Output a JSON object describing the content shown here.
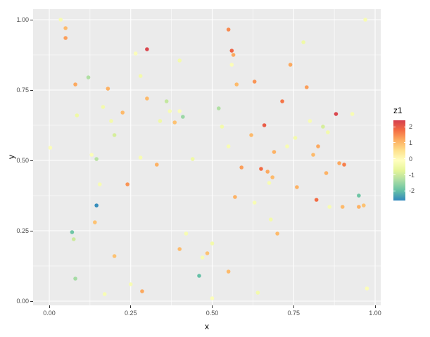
{
  "colors": {
    "panel_background": "#EBEBEB",
    "grid_major": "#FFFFFF",
    "grid_minor": "#FFFFFF",
    "axis_tick": "#333333",
    "tick_label": "#4D4D4D",
    "axis_title": "#000000"
  },
  "chart_data": {
    "type": "scatter",
    "title": "",
    "xlabel": "x",
    "ylabel": "y",
    "legend_title": "z1",
    "legend_position": "right",
    "grid": "on",
    "xlim": [
      0,
      1
    ],
    "ylim": [
      0,
      1
    ],
    "x_tick_values": [
      0,
      0.25,
      0.5,
      0.75,
      1
    ],
    "x_tick_labels": [
      "0.00",
      "0.25",
      "0.50",
      "0.75",
      "1.00"
    ],
    "y_tick_values": [
      0,
      0.25,
      0.5,
      0.75,
      1
    ],
    "y_tick_labels": [
      "0.00",
      "0.25",
      "0.50",
      "0.75",
      "1.00"
    ],
    "minor_tick_values": [
      0.125,
      0.375,
      0.625,
      0.875
    ],
    "colorbar": {
      "title": "z1",
      "domain": [
        -2.6,
        2.4
      ],
      "tick_values": [
        2,
        1,
        0,
        -1,
        -2
      ],
      "tick_labels": [
        "2",
        "1",
        "0",
        "-1",
        "-2"
      ],
      "palette_name": "Spectral",
      "palette_stops_bottom_to_top": [
        "#3288BD",
        "#66C2A5",
        "#ABDDA4",
        "#E6F598",
        "#FFFFBF",
        "#FEE08B",
        "#FDAE61",
        "#F46D43",
        "#D53E4F"
      ]
    },
    "points": [
      [
        0.003,
        0.545,
        -0.2
      ],
      [
        0.035,
        1.0,
        -0.3
      ],
      [
        0.05,
        0.97,
        1.0
      ],
      [
        0.05,
        0.935,
        1.3
      ],
      [
        0.08,
        0.77,
        1.2
      ],
      [
        0.085,
        0.66,
        -0.5
      ],
      [
        0.07,
        0.245,
        -1.9
      ],
      [
        0.075,
        0.22,
        -1.0
      ],
      [
        0.08,
        0.08,
        -1.4
      ],
      [
        0.12,
        0.795,
        -1.3
      ],
      [
        0.13,
        0.52,
        -0.2
      ],
      [
        0.145,
        0.505,
        -1.2
      ],
      [
        0.145,
        0.34,
        -2.55
      ],
      [
        0.14,
        0.28,
        0.9
      ],
      [
        0.155,
        0.415,
        -0.3
      ],
      [
        0.165,
        0.69,
        -0.4
      ],
      [
        0.17,
        0.025,
        -0.3
      ],
      [
        0.18,
        0.755,
        1.1
      ],
      [
        0.19,
        0.64,
        -0.4
      ],
      [
        0.2,
        0.59,
        -0.9
      ],
      [
        0.2,
        0.16,
        0.9
      ],
      [
        0.225,
        0.67,
        1.0
      ],
      [
        0.24,
        0.415,
        1.4
      ],
      [
        0.25,
        0.06,
        -0.3
      ],
      [
        0.265,
        0.88,
        -0.2
      ],
      [
        0.28,
        0.8,
        -0.4
      ],
      [
        0.28,
        0.51,
        -0.3
      ],
      [
        0.285,
        0.035,
        1.2
      ],
      [
        0.3,
        0.895,
        2.3
      ],
      [
        0.3,
        0.72,
        1.0
      ],
      [
        0.33,
        0.485,
        1.1
      ],
      [
        0.34,
        0.64,
        -0.5
      ],
      [
        0.36,
        0.71,
        -1.1
      ],
      [
        0.37,
        0.675,
        -0.3
      ],
      [
        0.385,
        0.635,
        0.9
      ],
      [
        0.4,
        0.855,
        -0.4
      ],
      [
        0.4,
        0.675,
        -0.2
      ],
      [
        0.41,
        0.655,
        -1.5
      ],
      [
        0.4,
        0.185,
        1.0
      ],
      [
        0.42,
        0.24,
        -0.3
      ],
      [
        0.44,
        0.505,
        -0.5
      ],
      [
        0.46,
        0.09,
        -2.0
      ],
      [
        0.47,
        0.155,
        -0.3
      ],
      [
        0.485,
        0.17,
        0.9
      ],
      [
        0.5,
        0.205,
        -0.4
      ],
      [
        0.5,
        0.01,
        -0.2
      ],
      [
        0.52,
        0.685,
        -1.3
      ],
      [
        0.53,
        0.62,
        -0.4
      ],
      [
        0.55,
        0.965,
        1.5
      ],
      [
        0.56,
        0.89,
        1.9
      ],
      [
        0.565,
        0.875,
        1.2
      ],
      [
        0.56,
        0.84,
        -0.2
      ],
      [
        0.575,
        0.77,
        1.0
      ],
      [
        0.55,
        0.55,
        -0.3
      ],
      [
        0.57,
        0.37,
        1.1
      ],
      [
        0.55,
        0.105,
        1.0
      ],
      [
        0.59,
        0.475,
        1.3
      ],
      [
        0.62,
        0.59,
        1.0
      ],
      [
        0.63,
        0.78,
        1.4
      ],
      [
        0.63,
        0.35,
        -0.3
      ],
      [
        0.64,
        0.03,
        -0.4
      ],
      [
        0.65,
        0.47,
        1.8
      ],
      [
        0.66,
        0.625,
        2.0
      ],
      [
        0.67,
        0.46,
        1.2
      ],
      [
        0.675,
        0.42,
        -0.3
      ],
      [
        0.685,
        0.44,
        1.0
      ],
      [
        0.68,
        0.29,
        -0.4
      ],
      [
        0.69,
        0.53,
        1.1
      ],
      [
        0.7,
        0.24,
        1.0
      ],
      [
        0.715,
        0.71,
        1.7
      ],
      [
        0.73,
        0.55,
        -0.3
      ],
      [
        0.74,
        0.84,
        1.2
      ],
      [
        0.755,
        0.58,
        -0.4
      ],
      [
        0.76,
        0.405,
        1.1
      ],
      [
        0.78,
        0.92,
        -0.5
      ],
      [
        0.79,
        0.76,
        1.3
      ],
      [
        0.8,
        0.64,
        -0.3
      ],
      [
        0.81,
        0.52,
        1.0
      ],
      [
        0.825,
        0.55,
        1.2
      ],
      [
        0.82,
        0.36,
        1.8
      ],
      [
        0.84,
        0.62,
        -0.9
      ],
      [
        0.855,
        0.6,
        -0.4
      ],
      [
        0.85,
        0.455,
        1.1
      ],
      [
        0.86,
        0.335,
        -0.3
      ],
      [
        0.88,
        0.665,
        2.3
      ],
      [
        0.89,
        0.49,
        1.2
      ],
      [
        0.905,
        0.485,
        1.6
      ],
      [
        0.9,
        0.335,
        1.0
      ],
      [
        0.93,
        0.665,
        -0.3
      ],
      [
        0.95,
        0.375,
        -1.9
      ],
      [
        0.95,
        0.335,
        1.1
      ],
      [
        0.965,
        0.34,
        0.9
      ],
      [
        0.97,
        1.0,
        -0.3
      ],
      [
        0.975,
        0.045,
        -0.2
      ]
    ]
  }
}
